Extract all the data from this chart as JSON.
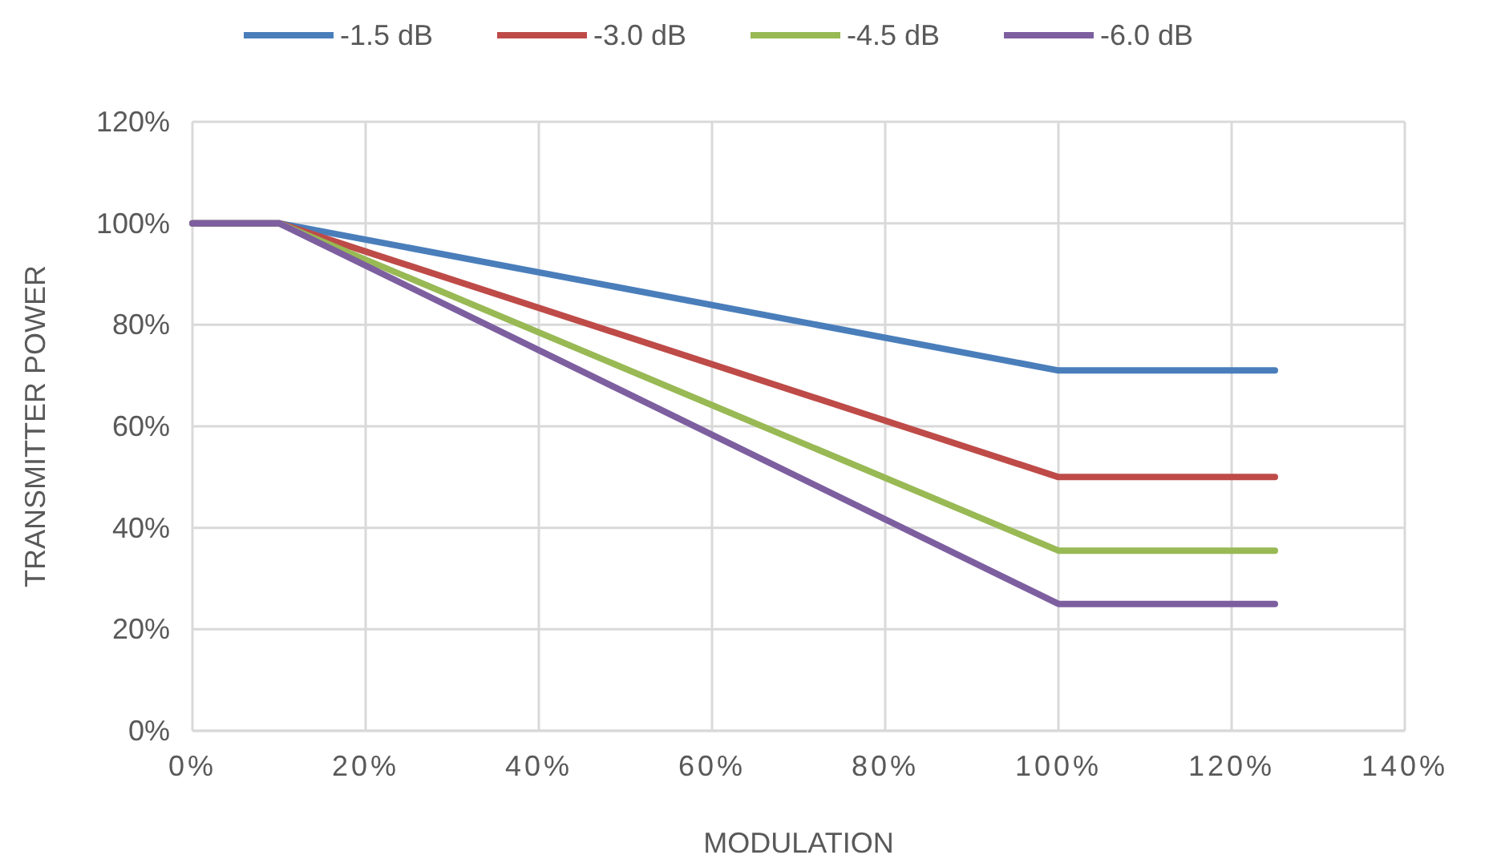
{
  "chart_data": {
    "type": "line",
    "xlabel": "MODULATION",
    "ylabel": "TRANSMITTER POWER",
    "x": [
      0,
      10,
      100,
      125
    ],
    "series": [
      {
        "name": "-1.5 dB",
        "color": "#4a7ebb",
        "values": [
          100,
          100,
          71,
          71
        ]
      },
      {
        "name": "-3.0 dB",
        "color": "#be4b48",
        "values": [
          100,
          100,
          50,
          50
        ]
      },
      {
        "name": "-4.5 dB",
        "color": "#98b954",
        "values": [
          100,
          100,
          35.5,
          35.5
        ]
      },
      {
        "name": "-6.0 dB",
        "color": "#7d5fa0",
        "values": [
          100,
          100,
          25,
          25
        ]
      }
    ],
    "xlim": [
      0,
      140
    ],
    "xticks": [
      {
        "value": 0,
        "label": "0%"
      },
      {
        "value": 20,
        "label": "20%"
      },
      {
        "value": 40,
        "label": "40%"
      },
      {
        "value": 60,
        "label": "60%"
      },
      {
        "value": 80,
        "label": "80%"
      },
      {
        "value": 100,
        "label": "100%"
      },
      {
        "value": 120,
        "label": "120%"
      },
      {
        "value": 140,
        "label": "140%"
      }
    ],
    "ylim": [
      0,
      120
    ],
    "yticks": [
      {
        "value": 0,
        "label": "0%"
      },
      {
        "value": 20,
        "label": "20%"
      },
      {
        "value": 40,
        "label": "40%"
      },
      {
        "value": 60,
        "label": "60%"
      },
      {
        "value": 80,
        "label": "80%"
      },
      {
        "value": 100,
        "label": "100%"
      },
      {
        "value": 120,
        "label": "120%"
      }
    ],
    "grid": true,
    "legend": "top",
    "marker": "none",
    "line_style": "solid"
  }
}
